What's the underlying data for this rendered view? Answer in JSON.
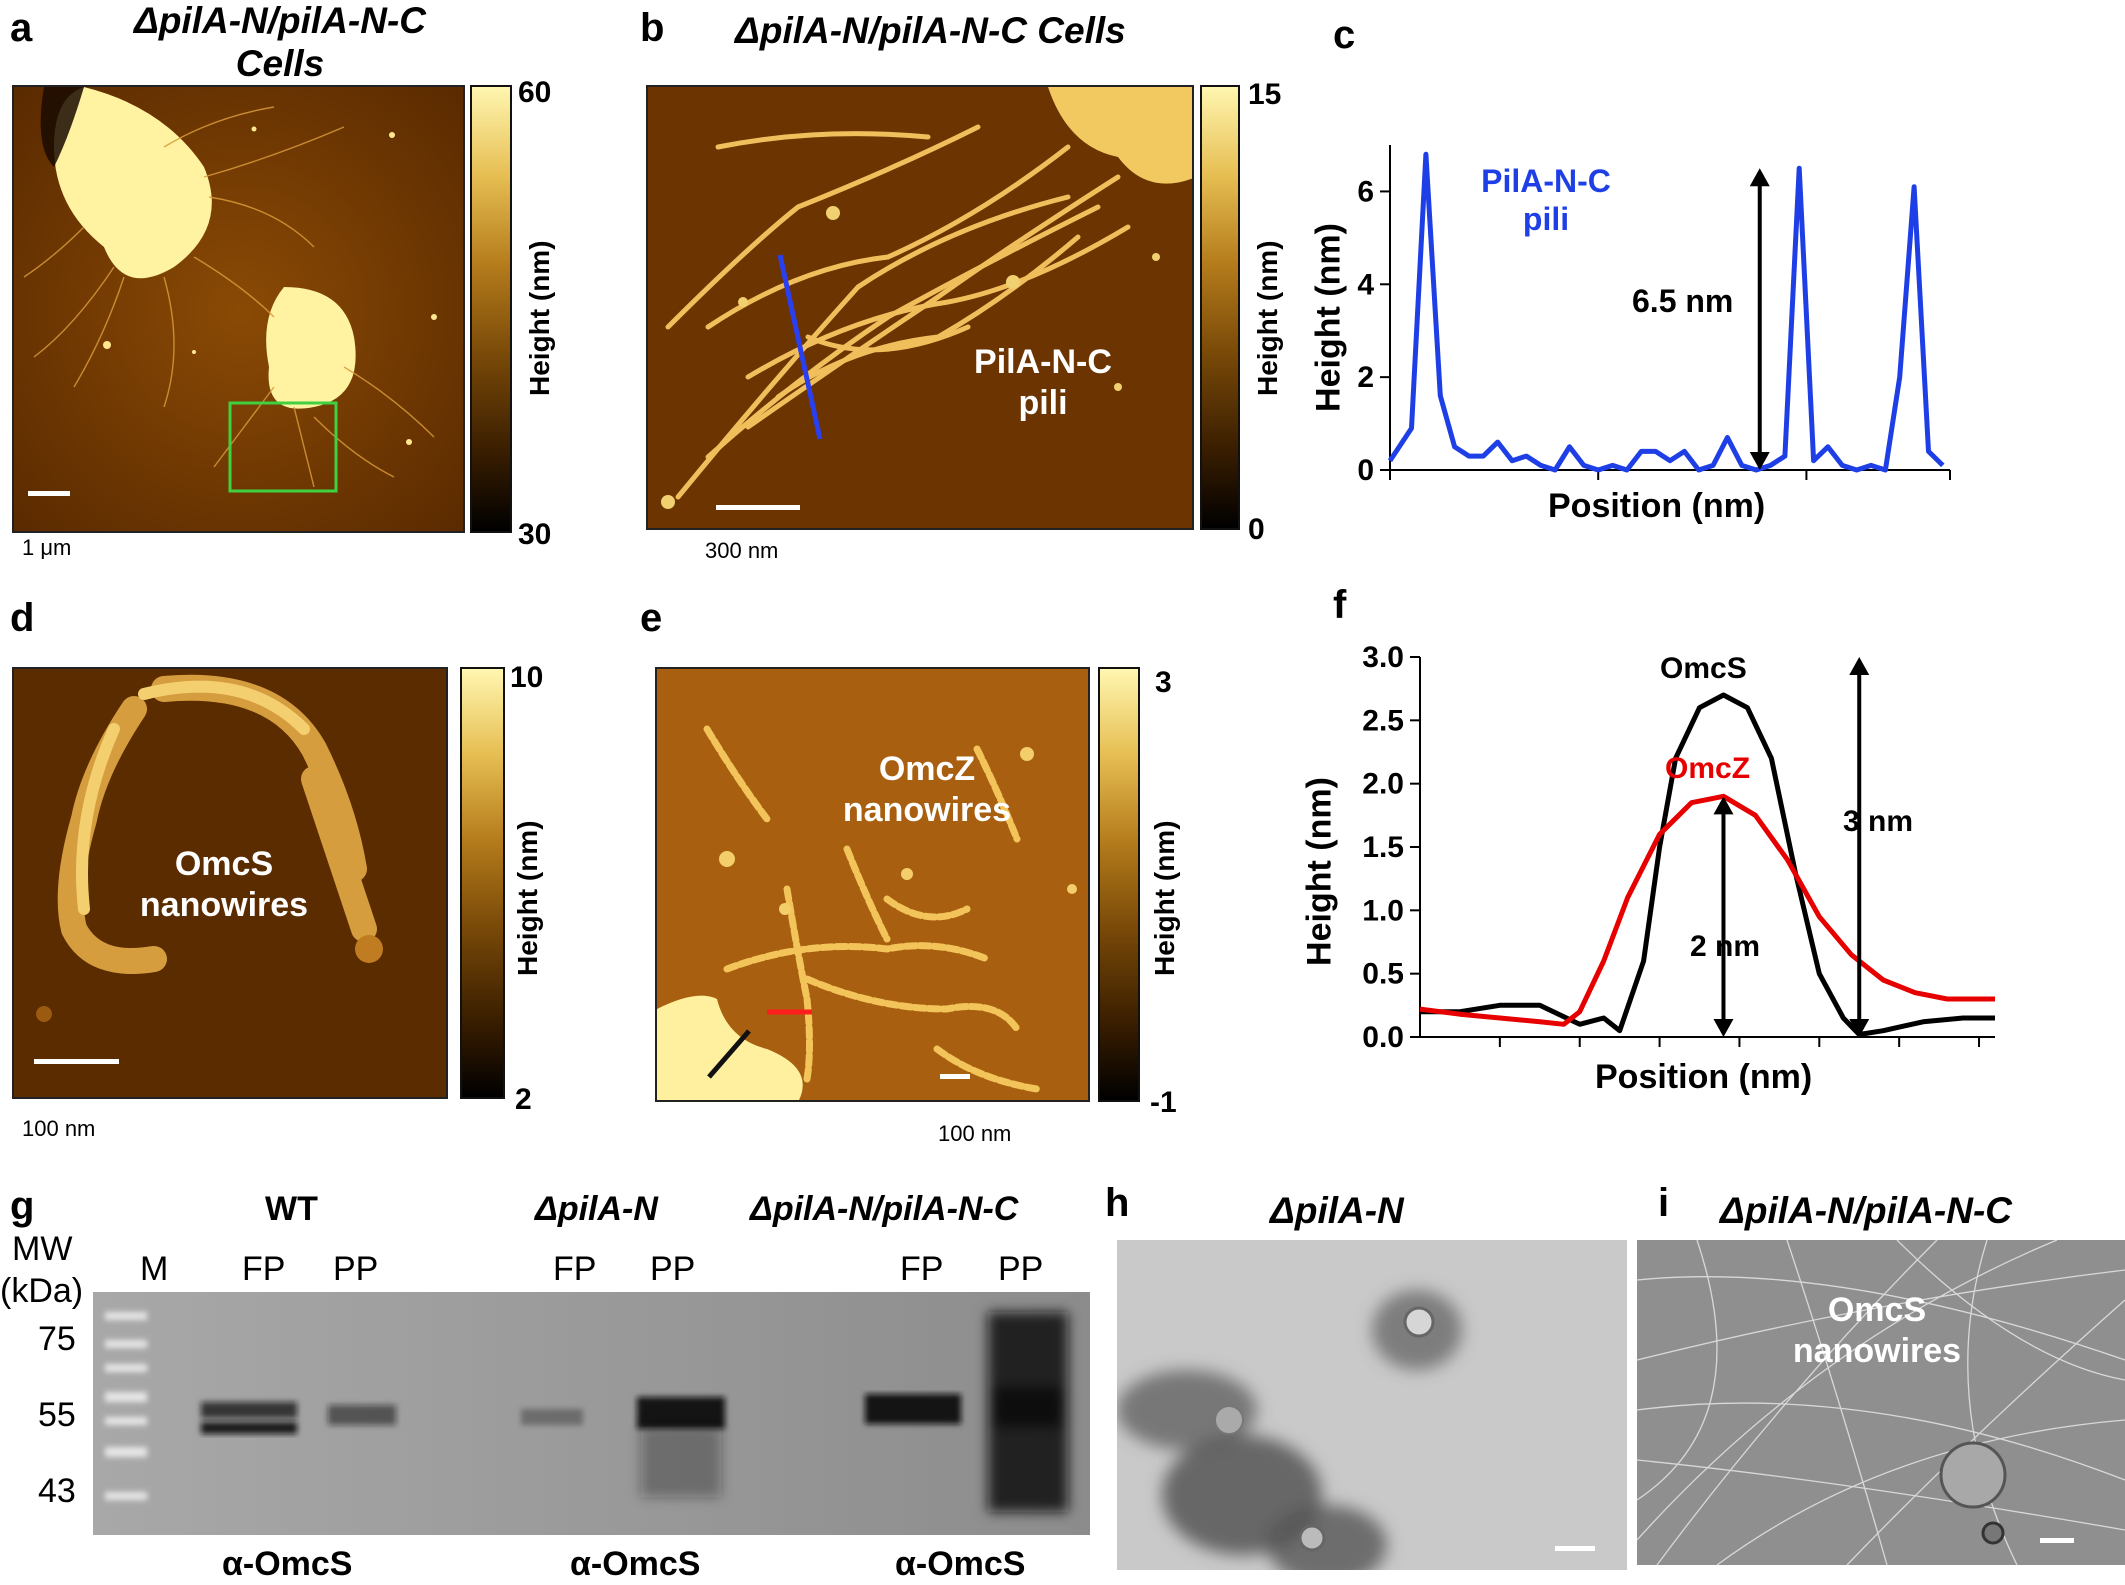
{
  "panels": {
    "a": {
      "letter": "a",
      "title_line1": "ΔpilA-N/pilA-N-C",
      "title_line2": "Cells",
      "scale": "1 μm",
      "cbar_max": "60",
      "cbar_min": "30",
      "cbar_unit": "Height (nm)"
    },
    "b": {
      "letter": "b",
      "title": "ΔpilA-N/pilA-N-C Cells",
      "scale": "300 nm",
      "cbar_max": "15",
      "cbar_min": "0",
      "cbar_unit": "Height (nm)",
      "label_line1": "PilA-N-C",
      "label_line2": "pili"
    },
    "c": {
      "letter": "c"
    },
    "d": {
      "letter": "d",
      "scale": "100 nm",
      "cbar_max": "10",
      "cbar_min": "2",
      "cbar_unit": "Height (nm)",
      "label_line1": "OmcS",
      "label_line2": "nanowires"
    },
    "e": {
      "letter": "e",
      "scale": "100 nm",
      "cbar_max": "3",
      "cbar_min": "-1",
      "cbar_unit": "Height (nm)",
      "label_line1": "OmcZ",
      "label_line2": "nanowires"
    },
    "f": {
      "letter": "f"
    },
    "g": {
      "letter": "g",
      "mw_line1": "MW",
      "mw_line2": "(kDa)",
      "marker": "M",
      "groups": [
        {
          "name": "WT",
          "lanes": [
            "FP",
            "PP"
          ],
          "antibody": "α-OmcS"
        },
        {
          "name": "ΔpilA-N",
          "lanes": [
            "FP",
            "PP"
          ],
          "antibody": "α-OmcS"
        },
        {
          "name": "ΔpilA-N/pilA-N-C",
          "lanes": [
            "FP",
            "PP"
          ],
          "antibody": "α-OmcS"
        }
      ],
      "mw_marks": [
        "75",
        "55",
        "43"
      ]
    },
    "h": {
      "letter": "h",
      "title": "ΔpilA-N"
    },
    "i": {
      "letter": "i",
      "title": "ΔpilA-N/pilA-N-C",
      "label_line1": "OmcS",
      "label_line2": "nanowires"
    }
  },
  "chart_data": [
    {
      "panel": "c",
      "type": "line",
      "xlabel": "Position (nm)",
      "ylabel": "Height (nm)",
      "ylim": [
        0,
        7
      ],
      "yticks": [
        "0",
        "2",
        "4",
        "6"
      ],
      "series": [
        {
          "name": "PilA-N-C pili",
          "color": "#1f3fe6",
          "points": [
            [
              0,
              0.2
            ],
            [
              3,
              0.9
            ],
            [
              5,
              6.8
            ],
            [
              7,
              1.6
            ],
            [
              9,
              0.5
            ],
            [
              11,
              0.3
            ],
            [
              13,
              0.3
            ],
            [
              15,
              0.6
            ],
            [
              17,
              0.2
            ],
            [
              19,
              0.3
            ],
            [
              21,
              0.1
            ],
            [
              23,
              0.0
            ],
            [
              25,
              0.5
            ],
            [
              27,
              0.1
            ],
            [
              29,
              0.0
            ],
            [
              31,
              0.1
            ],
            [
              33,
              0.0
            ],
            [
              35,
              0.4
            ],
            [
              37,
              0.4
            ],
            [
              39,
              0.2
            ],
            [
              41,
              0.4
            ],
            [
              43,
              0.0
            ],
            [
              45,
              0.1
            ],
            [
              47,
              0.7
            ],
            [
              49,
              0.1
            ],
            [
              51,
              0.0
            ],
            [
              53,
              0.1
            ],
            [
              55,
              0.3
            ],
            [
              57,
              6.5
            ],
            [
              59,
              0.2
            ],
            [
              61,
              0.5
            ],
            [
              63,
              0.1
            ],
            [
              65,
              0.0
            ],
            [
              67,
              0.1
            ],
            [
              69,
              0.0
            ],
            [
              71,
              2.0
            ],
            [
              73,
              6.1
            ],
            [
              75,
              0.4
            ],
            [
              77,
              0.1
            ]
          ]
        }
      ],
      "annotation": "6.5 nm",
      "series_label_line1": "PilA-N-C",
      "series_label_line2": "pili"
    },
    {
      "panel": "f",
      "type": "line",
      "xlabel": "Position (nm)",
      "ylabel": "Height (nm)",
      "ylim": [
        0,
        3.0
      ],
      "yticks": [
        "0.0",
        "0.5",
        "1.0",
        "1.5",
        "2.0",
        "2.5",
        "3.0"
      ],
      "series": [
        {
          "name": "OmcS",
          "color": "#000000",
          "points": [
            [
              0,
              0.2
            ],
            [
              5,
              0.2
            ],
            [
              10,
              0.25
            ],
            [
              15,
              0.25
            ],
            [
              20,
              0.1
            ],
            [
              23,
              0.15
            ],
            [
              25,
              0.05
            ],
            [
              28,
              0.6
            ],
            [
              30,
              1.5
            ],
            [
              32,
              2.2
            ],
            [
              35,
              2.6
            ],
            [
              38,
              2.7
            ],
            [
              41,
              2.6
            ],
            [
              44,
              2.2
            ],
            [
              47,
              1.3
            ],
            [
              50,
              0.5
            ],
            [
              53,
              0.15
            ],
            [
              55,
              0.02
            ],
            [
              58,
              0.05
            ],
            [
              63,
              0.12
            ],
            [
              68,
              0.15
            ],
            [
              72,
              0.15
            ]
          ]
        },
        {
          "name": "OmcZ",
          "color": "#e60000",
          "points": [
            [
              0,
              0.22
            ],
            [
              5,
              0.18
            ],
            [
              10,
              0.15
            ],
            [
              15,
              0.12
            ],
            [
              18,
              0.1
            ],
            [
              20,
              0.2
            ],
            [
              23,
              0.6
            ],
            [
              26,
              1.1
            ],
            [
              30,
              1.6
            ],
            [
              34,
              1.85
            ],
            [
              38,
              1.9
            ],
            [
              42,
              1.75
            ],
            [
              46,
              1.4
            ],
            [
              50,
              0.95
            ],
            [
              54,
              0.65
            ],
            [
              58,
              0.45
            ],
            [
              62,
              0.35
            ],
            [
              66,
              0.3
            ],
            [
              72,
              0.3
            ]
          ]
        }
      ],
      "annotations": [
        "3 nm",
        "2 nm"
      ]
    }
  ]
}
